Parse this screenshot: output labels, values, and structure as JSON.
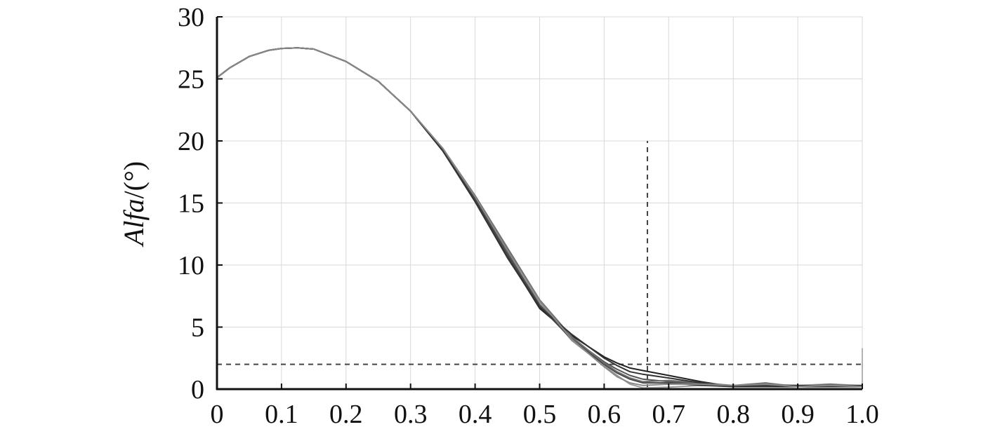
{
  "chart_data": {
    "type": "line",
    "title": "",
    "xlabel": "",
    "ylabel": {
      "italic": "Alfa",
      "suffix": "/(°)"
    },
    "xlim": [
      0,
      1.0
    ],
    "ylim": [
      0,
      30
    ],
    "x_ticks": [
      "0",
      "0.1",
      "0.2",
      "0.3",
      "0.4",
      "0.5",
      "0.6",
      "0.7",
      "0.8",
      "0.9",
      "1.0"
    ],
    "y_ticks": [
      "0",
      "5",
      "10",
      "15",
      "20",
      "25",
      "30"
    ],
    "grid": true,
    "legend": "none",
    "reference_lines": [
      {
        "orientation": "horizontal",
        "y": 2,
        "x_range": [
          0,
          1.0
        ],
        "style": "dashed"
      },
      {
        "orientation": "vertical",
        "x": 0.667,
        "y_range": [
          0,
          20
        ],
        "style": "dashed"
      }
    ],
    "series": [
      {
        "color": "#9a9a9a",
        "x": [
          0,
          0.02,
          0.05,
          0.08,
          0.1,
          0.125,
          0.15,
          0.2,
          0.25,
          0.3,
          0.35,
          0.4,
          0.45,
          0.5,
          0.55,
          0.6,
          0.62,
          0.64,
          0.66,
          0.7,
          0.75,
          0.8,
          0.85,
          0.9,
          0.95,
          1.0
        ],
        "values": [
          25.1,
          25.9,
          26.8,
          27.3,
          27.45,
          27.5,
          27.4,
          26.4,
          24.8,
          22.4,
          19.4,
          15.5,
          11.3,
          7.0,
          3.9,
          1.9,
          1.1,
          0.4,
          0.1,
          0.15,
          0.3,
          0.25,
          0.4,
          0.3,
          0.4,
          0.3
        ]
      },
      {
        "color": "#222222",
        "x": [
          0,
          0.02,
          0.05,
          0.08,
          0.1,
          0.125,
          0.15,
          0.2,
          0.25,
          0.3,
          0.35,
          0.4,
          0.45,
          0.5,
          0.55,
          0.6,
          0.62,
          0.64,
          0.66,
          0.7,
          0.75,
          0.8,
          0.85,
          0.9,
          0.95,
          1.0
        ],
        "values": [
          25.1,
          25.9,
          26.8,
          27.3,
          27.45,
          27.5,
          27.4,
          26.4,
          24.8,
          22.4,
          19.2,
          15.2,
          10.7,
          6.5,
          4.3,
          2.6,
          2.1,
          1.7,
          1.5,
          1.1,
          0.6,
          0.2,
          0.2,
          0.2,
          0.2,
          0.2
        ]
      },
      {
        "color": "#555555",
        "x": [
          0,
          0.02,
          0.05,
          0.08,
          0.1,
          0.125,
          0.15,
          0.2,
          0.25,
          0.3,
          0.35,
          0.4,
          0.45,
          0.5,
          0.55,
          0.6,
          0.62,
          0.64,
          0.66,
          0.7,
          0.75,
          0.8,
          0.85,
          0.9,
          0.95,
          1.0
        ],
        "values": [
          25.1,
          25.9,
          26.8,
          27.3,
          27.45,
          27.5,
          27.4,
          26.4,
          24.8,
          22.4,
          19.3,
          15.4,
          11.0,
          6.8,
          4.1,
          2.2,
          1.6,
          1.1,
          0.8,
          0.6,
          0.4,
          0.3,
          0.3,
          0.2,
          0.3,
          0.2
        ]
      },
      {
        "color": "#444444",
        "x": [
          0,
          0.02,
          0.05,
          0.08,
          0.1,
          0.125,
          0.15,
          0.2,
          0.25,
          0.3,
          0.35,
          0.4,
          0.45,
          0.5,
          0.55,
          0.6,
          0.62,
          0.64,
          0.66,
          0.7,
          0.75,
          0.8,
          0.85,
          0.9,
          0.95,
          1.0
        ],
        "values": [
          25.1,
          25.9,
          26.8,
          27.3,
          27.45,
          27.5,
          27.4,
          26.4,
          24.8,
          22.4,
          19.3,
          15.3,
          10.8,
          6.7,
          4.0,
          2.0,
          1.3,
          0.8,
          0.5,
          0.5,
          0.3,
          0.2,
          0.3,
          0.3,
          0.2,
          0.2
        ]
      },
      {
        "color": "#6e6e6e",
        "x": [
          0,
          0.02,
          0.05,
          0.08,
          0.1,
          0.125,
          0.15,
          0.2,
          0.25,
          0.3,
          0.35,
          0.4,
          0.45,
          0.5,
          0.55,
          0.6,
          0.62,
          0.64,
          0.66,
          0.7,
          0.75,
          0.8,
          0.85,
          0.9,
          0.95,
          1.0
        ],
        "values": [
          25.1,
          25.9,
          26.8,
          27.3,
          27.45,
          27.5,
          27.4,
          26.4,
          24.8,
          22.4,
          19.4,
          15.6,
          11.4,
          7.2,
          4.2,
          2.1,
          1.4,
          0.9,
          0.6,
          0.7,
          0.5,
          0.3,
          0.5,
          0.2,
          0.4,
          0.2
        ]
      },
      {
        "color": "#333333",
        "x": [
          0,
          0.02,
          0.05,
          0.08,
          0.1,
          0.125,
          0.15,
          0.2,
          0.25,
          0.3,
          0.35,
          0.4,
          0.45,
          0.5,
          0.55,
          0.6,
          0.62,
          0.64,
          0.66,
          0.7,
          0.75,
          0.8,
          0.85,
          0.9,
          0.95,
          1.0
        ],
        "values": [
          25.1,
          25.9,
          26.8,
          27.3,
          27.45,
          27.5,
          27.4,
          26.4,
          24.8,
          22.4,
          19.2,
          15.1,
          10.6,
          6.6,
          4.4,
          2.5,
          1.9,
          1.4,
          1.2,
          0.9,
          0.5,
          0.2,
          0.2,
          0.3,
          0.2,
          0.3
        ]
      },
      {
        "color": "#888888",
        "x": [
          0,
          0.02,
          0.05,
          0.08,
          0.1,
          0.125,
          0.15,
          0.2,
          0.25,
          0.3,
          0.35,
          0.4,
          0.45,
          0.5,
          0.55,
          0.6,
          0.62,
          0.64,
          0.66,
          0.7,
          0.75,
          0.8,
          0.85,
          0.9,
          0.95,
          1.0
        ],
        "values": [
          25.1,
          25.9,
          26.8,
          27.3,
          27.45,
          27.5,
          27.4,
          26.4,
          24.8,
          22.4,
          19.4,
          15.5,
          11.2,
          7.1,
          4.0,
          1.8,
          1.0,
          0.5,
          0.3,
          0.4,
          0.4,
          0.3,
          0.4,
          0.2,
          0.3,
          0.2
        ]
      }
    ]
  }
}
